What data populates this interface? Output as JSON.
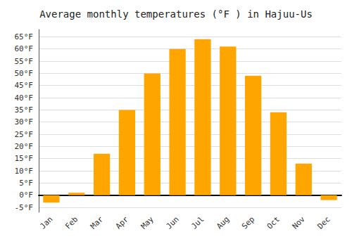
{
  "chart_data": {
    "type": "bar",
    "title": "Average monthly temperatures (°F ) in Hajuu-Us",
    "categories": [
      "Jan",
      "Feb",
      "Mar",
      "Apr",
      "May",
      "Jun",
      "Jul",
      "Aug",
      "Sep",
      "Oct",
      "Nov",
      "Dec"
    ],
    "values": [
      -3,
      1,
      17,
      35,
      50,
      60,
      64,
      61,
      49,
      34,
      13,
      -2
    ],
    "color": "#FFA500",
    "ylim": [
      -7,
      68
    ],
    "yticks": [
      {
        "value": -5,
        "label": "-5°F"
      },
      {
        "value": 0,
        "label": "0°F"
      },
      {
        "value": 5,
        "label": "5°F"
      },
      {
        "value": 10,
        "label": "10°F"
      },
      {
        "value": 15,
        "label": "15°F"
      },
      {
        "value": 20,
        "label": "20°F"
      },
      {
        "value": 25,
        "label": "25°F"
      },
      {
        "value": 30,
        "label": "30°F"
      },
      {
        "value": 35,
        "label": "35°F"
      },
      {
        "value": 40,
        "label": "40°F"
      },
      {
        "value": 45,
        "label": "45°F"
      },
      {
        "value": 50,
        "label": "50°F"
      },
      {
        "value": 55,
        "label": "55°F"
      },
      {
        "value": 60,
        "label": "60°F"
      },
      {
        "value": 65,
        "label": "65°F"
      }
    ],
    "grid": true
  }
}
